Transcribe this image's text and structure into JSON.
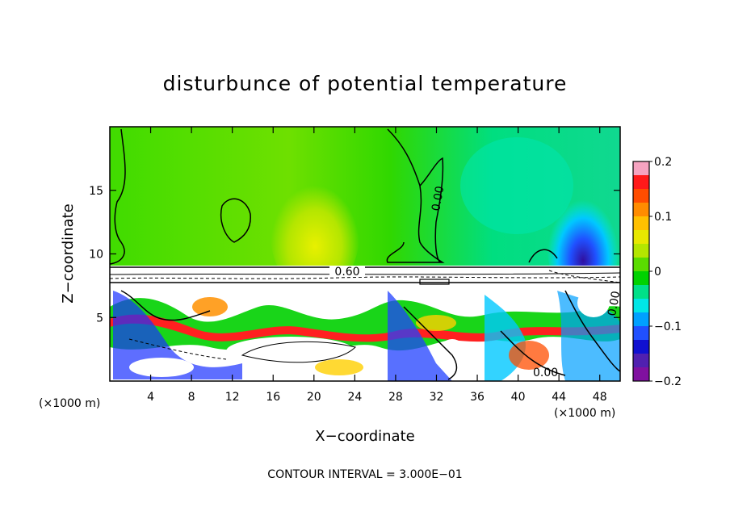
{
  "chart_data": {
    "type": "heatmap",
    "title": "disturbunce of potential temperature",
    "xlabel": "X−coordinate",
    "ylabel": "Z−coordinate",
    "x_unit": "(×1000 m)",
    "z_unit": "(×1000 m)",
    "xlim": [
      0,
      50
    ],
    "ylim": [
      0,
      20
    ],
    "x_ticks": [
      4,
      8,
      12,
      16,
      20,
      24,
      28,
      32,
      36,
      40,
      44,
      48
    ],
    "y_ticks": [
      5,
      10,
      15
    ],
    "colorbar": {
      "min": -0.2,
      "max": 0.2,
      "tick_values": [
        0.2,
        0.1,
        0,
        -0.1,
        -0.2
      ],
      "tick_labels": [
        "0.2",
        "0.1",
        "0",
        "−0.1",
        "−0.2"
      ],
      "colors": [
        "#f5a3c0",
        "#ff1a1a",
        "#ff4d00",
        "#ff8c00",
        "#ffc000",
        "#e8e800",
        "#b4e600",
        "#5adc00",
        "#00d200",
        "#00e088",
        "#00e6e6",
        "#00a0ff",
        "#2050ff",
        "#1010d0",
        "#5020b0",
        "#8010a0"
      ]
    },
    "contour_labels": [
      "0.60",
      "0.00",
      "0.00",
      "0.00"
    ],
    "contour_interval_label": "CONTOUR INTERVAL = 3.000E−01",
    "field_description_values": {
      "upper_layer_range": [
        -0.2,
        0.05
      ],
      "stable_layer_contour": 0.6,
      "lower_layer_range": [
        -0.2,
        0.2
      ]
    }
  }
}
